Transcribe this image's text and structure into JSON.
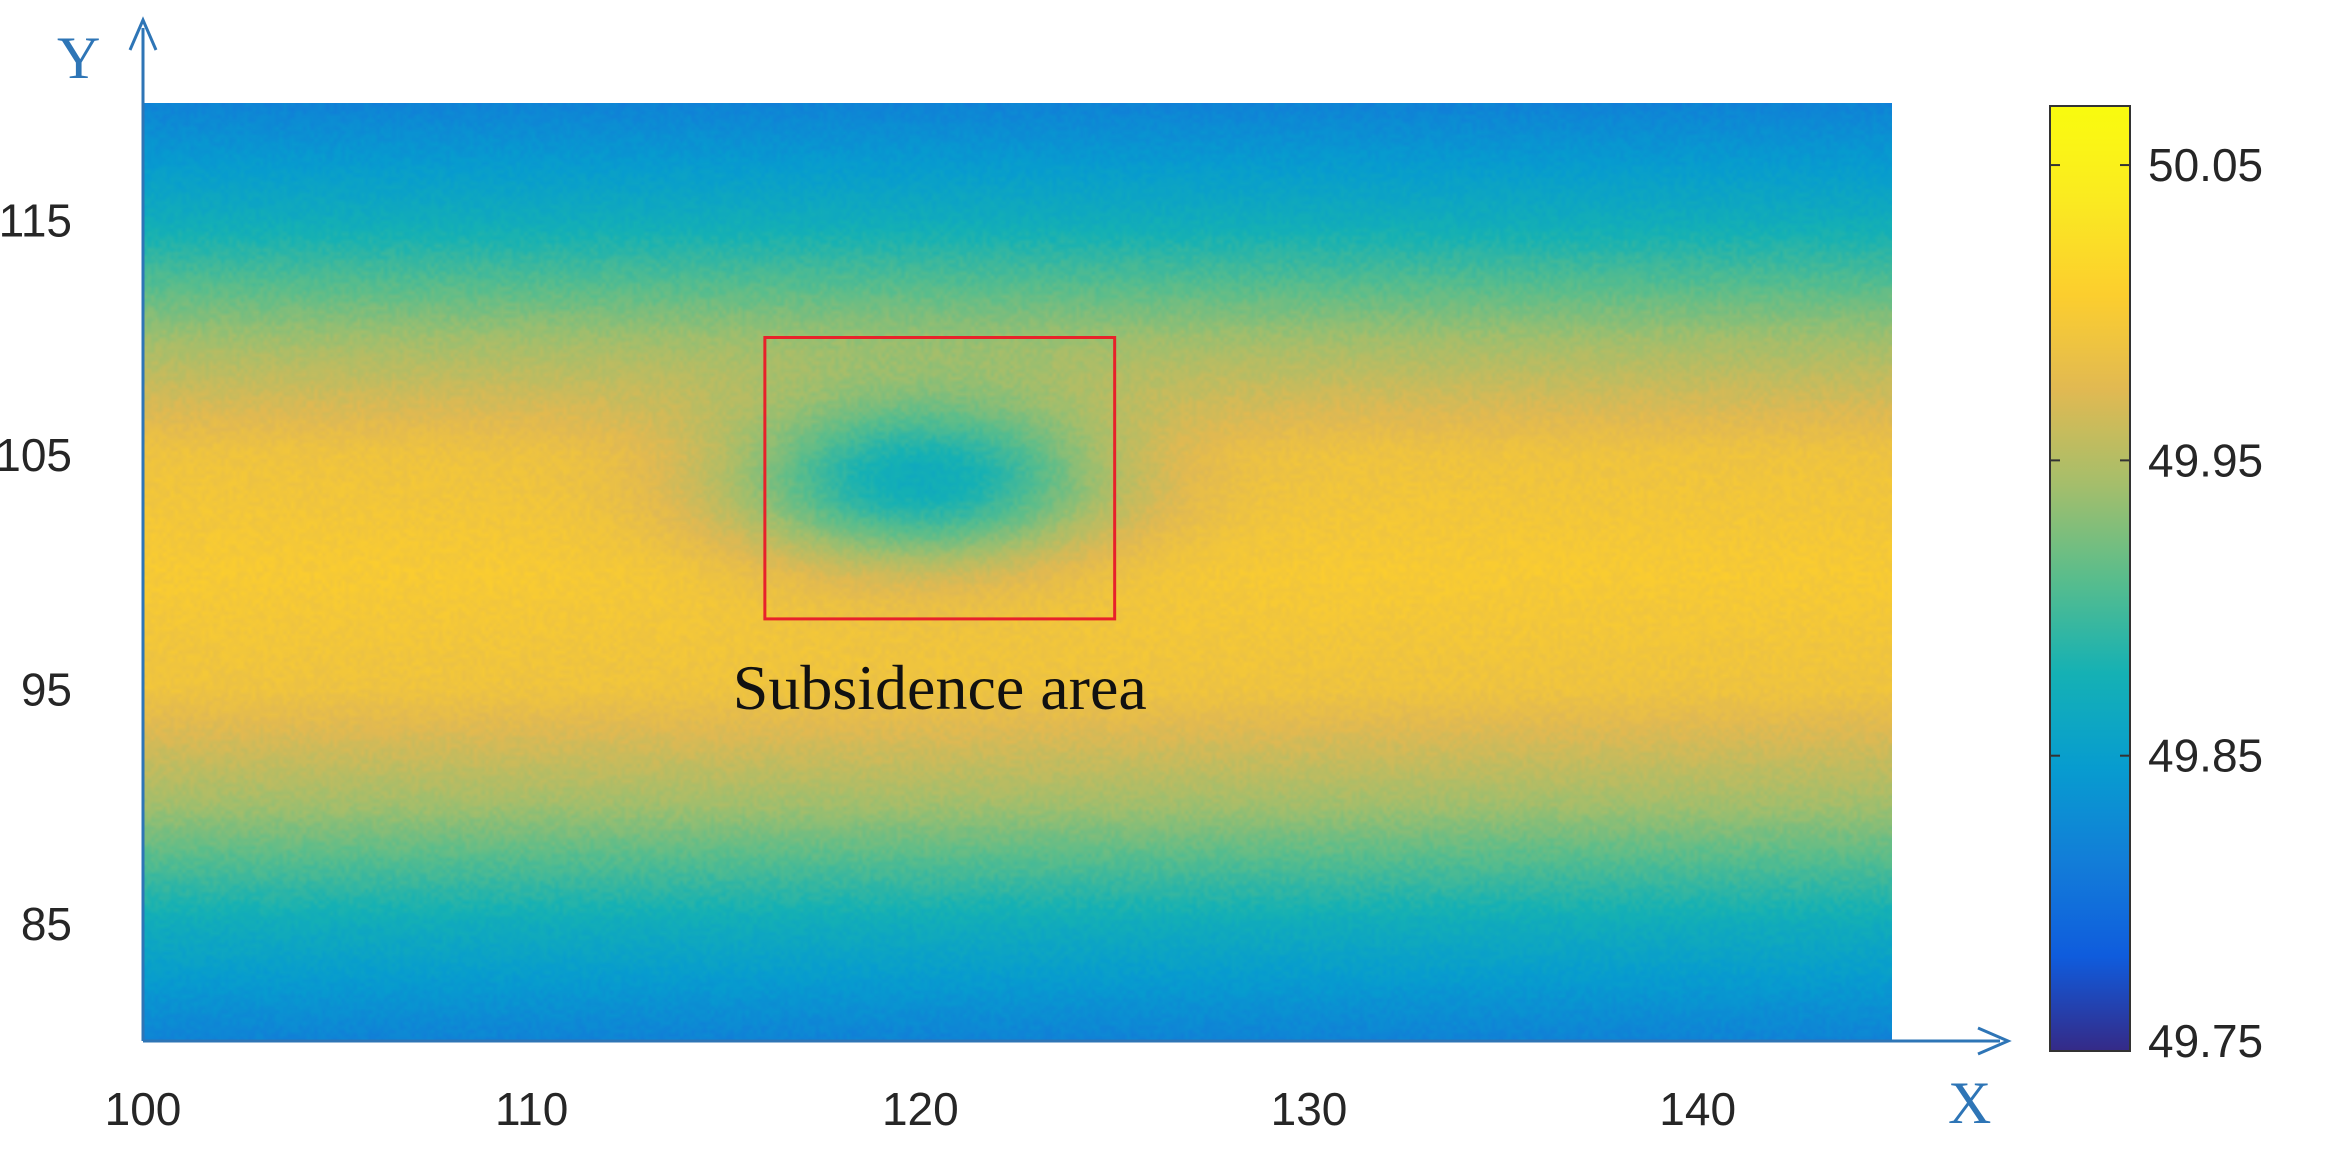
{
  "chart_data": {
    "type": "heatmap",
    "xlabel": "X",
    "ylabel": "Y",
    "xlim": [
      100,
      145
    ],
    "ylim": [
      80,
      120
    ],
    "x_ticks": [
      "100",
      "110",
      "120",
      "130",
      "140"
    ],
    "y_ticks": [
      "85",
      "95",
      "105",
      "115"
    ],
    "colorbar": {
      "min": 49.75,
      "max": 50.07,
      "ticks": [
        "49.75",
        "49.85",
        "49.95",
        "50.05"
      ],
      "colormap": "parula"
    },
    "field": {
      "center_y": 100,
      "center_value": 50.0,
      "edge_value": 49.82,
      "profile": [
        {
          "y": 80,
          "value": 49.82
        },
        {
          "y": 85,
          "value": 49.87
        },
        {
          "y": 90,
          "value": 49.94
        },
        {
          "y": 95,
          "value": 49.99
        },
        {
          "y": 100,
          "value": 50.0
        },
        {
          "y": 105,
          "value": 49.99
        },
        {
          "y": 110,
          "value": 49.94
        },
        {
          "y": 115,
          "value": 49.87
        },
        {
          "y": 120,
          "value": 49.82
        }
      ],
      "depression": {
        "x": 120,
        "y": 104,
        "min_value": 49.87,
        "radius_x": 3.5,
        "radius_y": 2.6
      }
    },
    "annotation": {
      "label": "Subsidence area",
      "box": {
        "x0": 116,
        "x1": 125,
        "y0": 98,
        "y1": 110
      },
      "color": "#E8212A"
    },
    "axis_color": "#2E75B6"
  }
}
